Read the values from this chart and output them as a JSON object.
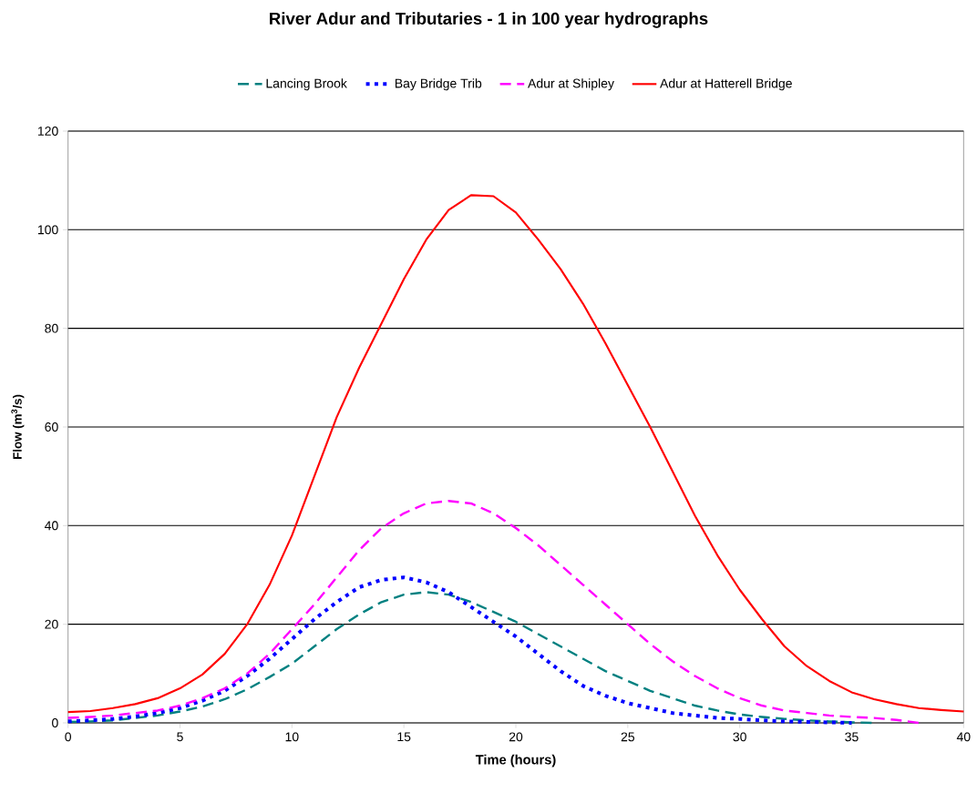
{
  "chart_data": {
    "type": "line",
    "title": "River Adur and Tributaries - 1 in 100 year hydrographs",
    "xlabel": "Time (hours)",
    "ylabel": "Flow (m$^{3}$/s)",
    "x": [
      0,
      1,
      2,
      3,
      4,
      5,
      6,
      7,
      8,
      9,
      10,
      11,
      12,
      13,
      14,
      15,
      16,
      17,
      18,
      19,
      20,
      21,
      22,
      23,
      24,
      25,
      26,
      27,
      28,
      29,
      30,
      31,
      32,
      33,
      34,
      35,
      36,
      37,
      38,
      39,
      40
    ],
    "series": [
      {
        "name": "Lancing Brook",
        "color": "#008080",
        "line_style": "dashed",
        "values": [
          0.2,
          0.3,
          0.5,
          1,
          1.5,
          2.3,
          3.3,
          4.8,
          6.8,
          9.3,
          12,
          15.5,
          19,
          22,
          24.5,
          26,
          26.5,
          26,
          24.5,
          22.5,
          20.5,
          18,
          15.5,
          13,
          10.5,
          8.5,
          6.5,
          5,
          3.5,
          2.5,
          1.7,
          1.2,
          0.8,
          0.5,
          0.3,
          0.1,
          0,
          null,
          null,
          null,
          null
        ]
      },
      {
        "name": "Bay Bridge Trib",
        "color": "#0000ff",
        "line_style": "dotted",
        "values": [
          0.3,
          0.5,
          0.8,
          1.3,
          2,
          3,
          4.5,
          6.5,
          9.5,
          13,
          17,
          21,
          24.5,
          27.5,
          29,
          29.5,
          28.5,
          26.5,
          23.5,
          20.5,
          17.5,
          14,
          10.5,
          7.5,
          5.5,
          4,
          3,
          2,
          1.5,
          1,
          0.8,
          0.5,
          0.3,
          0.2,
          0.1,
          0,
          null,
          null,
          null,
          null,
          null
        ]
      },
      {
        "name": "Adur at Shipley",
        "color": "#ff00ff",
        "line_style": "dashed",
        "values": [
          1,
          1.2,
          1.5,
          2,
          2.5,
          3.5,
          5,
          7,
          10,
          14,
          19,
          24,
          29.5,
          35,
          39.5,
          42.5,
          44.5,
          45,
          44.5,
          42.5,
          39.5,
          36,
          32,
          28,
          24,
          20,
          16,
          12.5,
          9.5,
          7,
          5,
          3.5,
          2.5,
          2,
          1.5,
          1.2,
          1,
          0.6,
          0,
          null,
          null
        ]
      },
      {
        "name": "Adur at Hatterell Bridge",
        "color": "#ff0000",
        "line_style": "solid",
        "values": [
          2.2,
          2.4,
          3,
          3.8,
          5,
          7,
          9.8,
          14,
          20,
          28,
          38,
          50,
          62,
          72,
          81,
          90,
          98,
          104,
          107,
          106.8,
          103.5,
          98,
          92,
          85,
          77,
          68.5,
          60,
          51,
          42,
          34,
          27,
          21,
          15.5,
          11.5,
          8.5,
          6.2,
          4.8,
          3.8,
          3,
          2.6,
          2.3
        ]
      }
    ],
    "xlim": [
      0,
      40
    ],
    "xticks": [
      0,
      5,
      10,
      15,
      20,
      25,
      30,
      35,
      40
    ],
    "ylim": [
      0,
      120
    ],
    "yticks": [
      0,
      20,
      40,
      60,
      80,
      100,
      120
    ],
    "grid": "y",
    "legend": "top",
    "marker": "none"
  }
}
